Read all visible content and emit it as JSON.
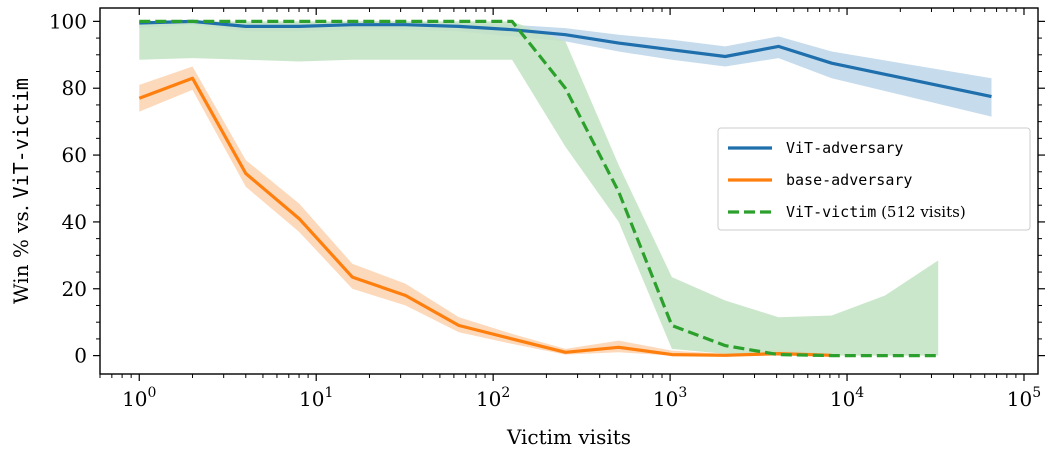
{
  "chart_data": {
    "type": "line",
    "xlabel": "Victim visits",
    "ylabel": {
      "prefix": "Win % vs. ",
      "mono": "ViT-victim"
    },
    "x_scale": "log",
    "xlim": [
      0.6,
      120000
    ],
    "ylim": [
      -5.5,
      104
    ],
    "x_ticks": [
      {
        "value": 1,
        "base": "10",
        "exp": "0"
      },
      {
        "value": 10,
        "base": "10",
        "exp": "1"
      },
      {
        "value": 100,
        "base": "10",
        "exp": "2"
      },
      {
        "value": 1000,
        "base": "10",
        "exp": "3"
      },
      {
        "value": 10000,
        "base": "10",
        "exp": "4"
      },
      {
        "value": 100000,
        "base": "10",
        "exp": "5"
      }
    ],
    "y_ticks": [
      "0",
      "20",
      "40",
      "60",
      "80",
      "100"
    ],
    "grid": false,
    "legend_position": "center-right",
    "series": [
      {
        "name": "ViT-adversary",
        "name_suffix": "",
        "color": "#1f6fad",
        "band_color": "#bcd6ea",
        "dash": "solid",
        "x": [
          1,
          2,
          4,
          8,
          16,
          32,
          64,
          128,
          256,
          512,
          1024,
          2048,
          4096,
          8192,
          65536
        ],
        "y": [
          99.5,
          100,
          98.5,
          98.5,
          99,
          99,
          98.5,
          97.5,
          96,
          93.5,
          91.5,
          89.5,
          92.5,
          87.5,
          77.5
        ],
        "lower": [
          98,
          99,
          97,
          97,
          97.5,
          97.5,
          97,
          95.5,
          94,
          91,
          88.5,
          86.5,
          89,
          83,
          71.5
        ],
        "upper": [
          100,
          100,
          99.5,
          99.5,
          100,
          100,
          99.5,
          99,
          98,
          96,
          94.5,
          92.5,
          95.5,
          91,
          83
        ]
      },
      {
        "name": "base-adversary",
        "name_suffix": "",
        "color": "#ff7f0e",
        "band_color": "#fdd2b0",
        "dash": "solid",
        "x": [
          1,
          2,
          4,
          8,
          16,
          32,
          64,
          128,
          256,
          512,
          1024,
          2048,
          4096,
          8192
        ],
        "y": [
          77,
          83,
          54.5,
          41,
          23.5,
          18,
          9,
          5,
          1,
          2.5,
          0.3,
          0.1,
          0.6,
          0.1
        ],
        "lower": [
          73,
          79.5,
          50.5,
          37,
          20,
          15,
          7,
          3.5,
          0.3,
          1,
          0,
          0,
          0,
          0
        ],
        "upper": [
          81,
          86.5,
          58.5,
          45.5,
          27.5,
          21.5,
          11.5,
          6.5,
          2,
          4.5,
          1.5,
          0.5,
          1.8,
          0.5
        ]
      },
      {
        "name": "ViT-victim",
        "name_suffix": "(512 visits)",
        "color": "#2ca02c",
        "band_color": "#c2e3c2",
        "dash": "dashed",
        "x": [
          1,
          2,
          4,
          8,
          16,
          32,
          64,
          128,
          256,
          512,
          1024,
          2048,
          4096,
          8192,
          16384,
          32768
        ],
        "y": [
          100,
          100,
          100,
          100,
          100,
          100,
          100,
          100,
          80,
          49,
          9,
          3,
          0.3,
          0,
          0,
          0
        ],
        "lower": [
          88.5,
          89,
          88.5,
          88,
          88.5,
          88.5,
          88.5,
          88.5,
          62.5,
          40,
          2,
          0.5,
          0,
          0,
          0,
          0
        ],
        "upper": [
          100,
          100,
          100,
          100,
          100,
          100,
          100,
          100,
          94,
          57,
          23.5,
          16.5,
          11.5,
          12,
          18,
          28.5
        ]
      }
    ]
  }
}
